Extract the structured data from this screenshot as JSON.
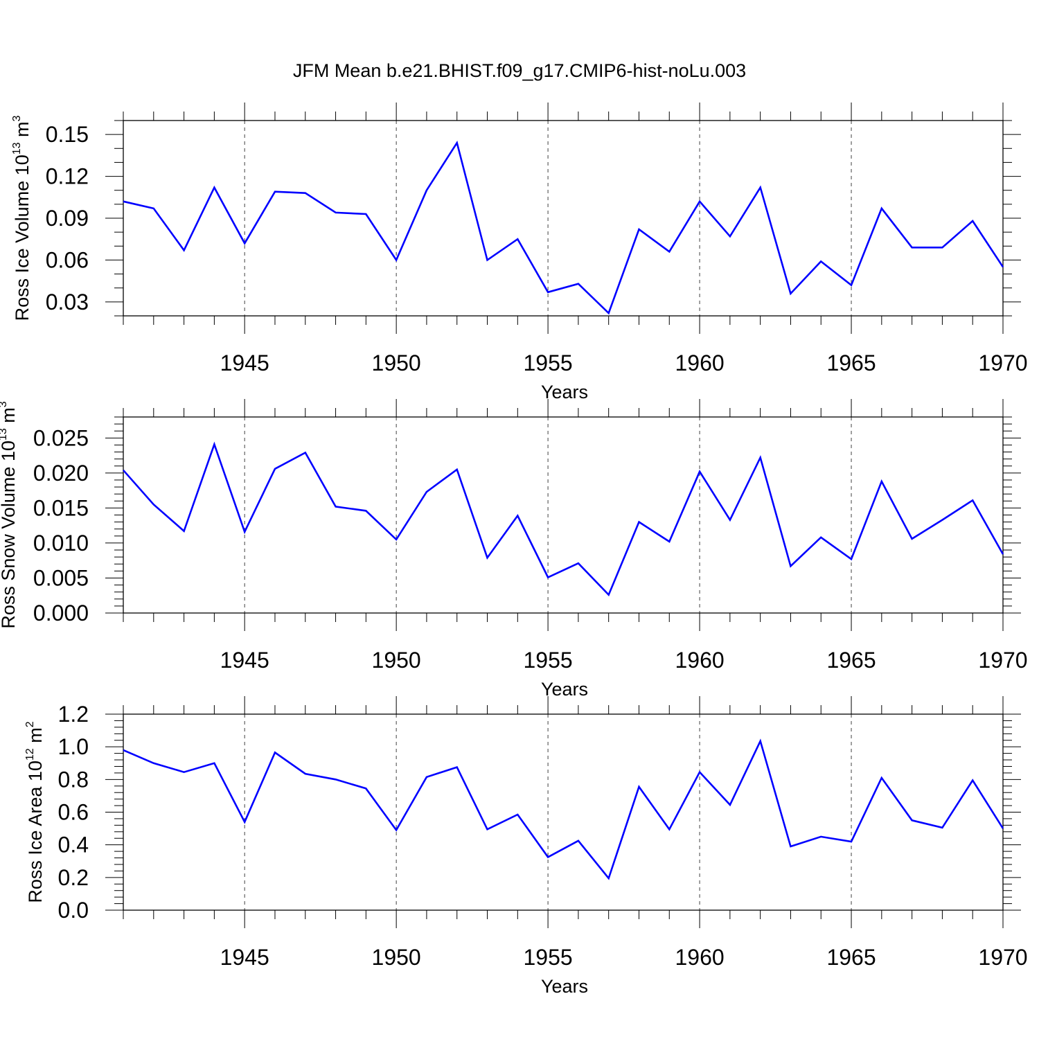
{
  "title": "JFM Mean b.e21.BHIST.f09_g17.CMIP6-hist-noLu.003",
  "colors": {
    "line": "#0000ff",
    "axis": "#000000",
    "grid": "#000000"
  },
  "chart_data": [
    {
      "type": "line",
      "xlabel": "Years",
      "ylabel": {
        "text": "Ross Ice Volume 10",
        "exp": "13",
        "unit": " m",
        "unit_exp": "3"
      },
      "xlim": [
        1941,
        1970
      ],
      "ylim": [
        0.02,
        0.16
      ],
      "yticks": [
        0.03,
        0.06,
        0.09,
        0.12,
        0.15
      ],
      "ytick_labels": [
        "0.03",
        "0.06",
        "0.09",
        "0.12",
        "0.15"
      ],
      "yminor_step": 0.01,
      "xticks": [
        1945,
        1950,
        1955,
        1960,
        1965,
        1970
      ],
      "xtick_labels": [
        "1945",
        "1950",
        "1955",
        "1960",
        "1965",
        "1970"
      ],
      "grid": "dashed vertical at major x ticks",
      "x": [
        1941,
        1942,
        1943,
        1944,
        1945,
        1946,
        1947,
        1948,
        1949,
        1950,
        1951,
        1952,
        1953,
        1954,
        1955,
        1956,
        1957,
        1958,
        1959,
        1960,
        1961,
        1962,
        1963,
        1964,
        1965,
        1966,
        1967,
        1968,
        1969,
        1970
      ],
      "series": [
        {
          "values": [
            0.102,
            0.097,
            0.067,
            0.112,
            0.072,
            0.109,
            0.108,
            0.094,
            0.093,
            0.06,
            0.11,
            0.144,
            0.06,
            0.075,
            0.037,
            0.043,
            0.022,
            0.082,
            0.066,
            0.102,
            0.077,
            0.112,
            0.036,
            0.059,
            0.042,
            0.097,
            0.069,
            0.069,
            0.088,
            0.055
          ]
        }
      ]
    },
    {
      "type": "line",
      "xlabel": "Years",
      "ylabel": {
        "text": "Ross Snow Volume 10",
        "exp": "13",
        "unit": " m",
        "unit_exp": "3"
      },
      "xlim": [
        1941,
        1970
      ],
      "ylim": [
        0.0,
        0.028
      ],
      "yticks": [
        0.0,
        0.005,
        0.01,
        0.015,
        0.02,
        0.025
      ],
      "ytick_labels": [
        "0.000",
        "0.005",
        "0.010",
        "0.015",
        "0.020",
        "0.025"
      ],
      "yminor_step": 0.001,
      "xticks": [
        1945,
        1950,
        1955,
        1960,
        1965,
        1970
      ],
      "xtick_labels": [
        "1945",
        "1950",
        "1955",
        "1960",
        "1965",
        "1970"
      ],
      "grid": "dashed vertical at major x ticks",
      "x": [
        1941,
        1942,
        1943,
        1944,
        1945,
        1946,
        1947,
        1948,
        1949,
        1950,
        1951,
        1952,
        1953,
        1954,
        1955,
        1956,
        1957,
        1958,
        1959,
        1960,
        1961,
        1962,
        1963,
        1964,
        1965,
        1966,
        1967,
        1968,
        1969,
        1970
      ],
      "series": [
        {
          "values": [
            0.0204,
            0.0155,
            0.0117,
            0.0241,
            0.0116,
            0.0206,
            0.0229,
            0.0152,
            0.0146,
            0.0105,
            0.0173,
            0.0205,
            0.0079,
            0.0139,
            0.0051,
            0.0071,
            0.0026,
            0.013,
            0.0102,
            0.0202,
            0.0133,
            0.0222,
            0.0067,
            0.0108,
            0.0077,
            0.0188,
            0.0106,
            0.0133,
            0.0161,
            0.0084
          ]
        }
      ]
    },
    {
      "type": "line",
      "xlabel": "Years",
      "ylabel": {
        "text": "Ross Ice Area 10",
        "exp": "12",
        "unit": " m",
        "unit_exp": "2"
      },
      "xlim": [
        1941,
        1970
      ],
      "ylim": [
        0.0,
        1.2
      ],
      "yticks": [
        0.0,
        0.2,
        0.4,
        0.6,
        0.8,
        1.0,
        1.2
      ],
      "ytick_labels": [
        "0.0",
        "0.2",
        "0.4",
        "0.6",
        "0.8",
        "1.0",
        "1.2"
      ],
      "yminor_step": 0.04,
      "xticks": [
        1945,
        1950,
        1955,
        1960,
        1965,
        1970
      ],
      "xtick_labels": [
        "1945",
        "1950",
        "1955",
        "1960",
        "1965",
        "1970"
      ],
      "grid": "dashed vertical at major x ticks",
      "x": [
        1941,
        1942,
        1943,
        1944,
        1945,
        1946,
        1947,
        1948,
        1949,
        1950,
        1951,
        1952,
        1953,
        1954,
        1955,
        1956,
        1957,
        1958,
        1959,
        1960,
        1961,
        1962,
        1963,
        1964,
        1965,
        1966,
        1967,
        1968,
        1969,
        1970
      ],
      "series": [
        {
          "values": [
            0.98,
            0.9,
            0.845,
            0.9,
            0.54,
            0.965,
            0.835,
            0.8,
            0.745,
            0.49,
            0.815,
            0.875,
            0.495,
            0.585,
            0.325,
            0.425,
            0.195,
            0.755,
            0.495,
            0.845,
            0.645,
            1.035,
            0.39,
            0.45,
            0.42,
            0.81,
            0.55,
            0.505,
            0.795,
            0.5
          ]
        }
      ]
    }
  ]
}
